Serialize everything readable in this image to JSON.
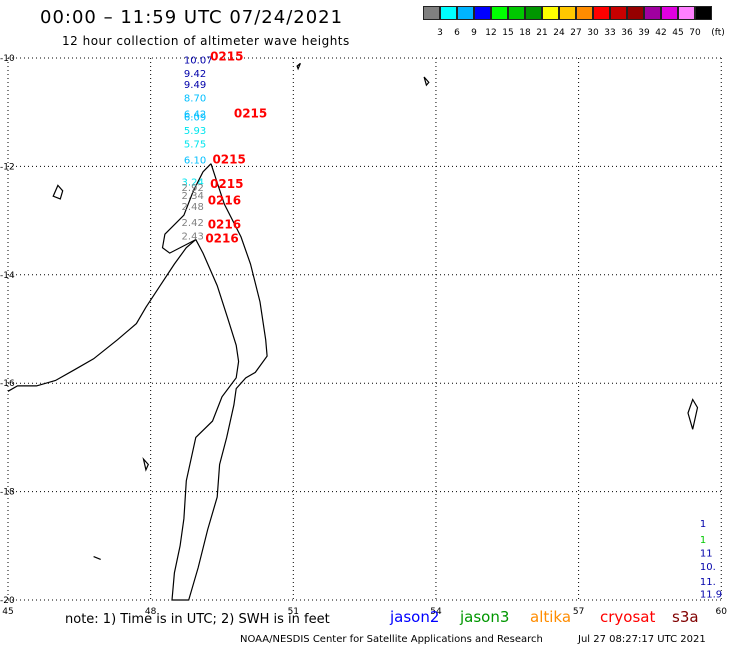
{
  "title": "00:00 – 11:59 UTC 07/24/2021",
  "subtitle": "12 hour collection of altimeter wave heights",
  "legend": {
    "unit": "(ft)",
    "colors": [
      "#808080",
      "#00ffff",
      "#00b4ff",
      "#0000ff",
      "#00ff00",
      "#00c800",
      "#009600",
      "#ffff00",
      "#ffc800",
      "#ff8c00",
      "#ff0000",
      "#c80000",
      "#960000",
      "#a000a0",
      "#e000e0",
      "#ff80ff",
      "#000000"
    ],
    "ticks": [
      "3",
      "6",
      "9",
      "12",
      "15",
      "18",
      "21",
      "24",
      "27",
      "30",
      "33",
      "36",
      "39",
      "42",
      "45",
      "70"
    ]
  },
  "axes": {
    "lon_labels": [
      "45",
      "48",
      "51",
      "54",
      "57",
      "60"
    ],
    "lat_labels": [
      "-10",
      "-12",
      "-14",
      "-16",
      "-18",
      "-20"
    ]
  },
  "map": {
    "coast_color": "#000000",
    "grid_color": "#000000"
  },
  "swh_labels": [
    {
      "lon": 48.7,
      "lat": -10.1,
      "text": "10.07",
      "color": "#0000aa"
    },
    {
      "lon": 48.7,
      "lat": -10.35,
      "text": "9.42",
      "color": "#0000aa"
    },
    {
      "lon": 48.7,
      "lat": -10.55,
      "text": "9.49",
      "color": "#0000aa"
    },
    {
      "lon": 48.7,
      "lat": -10.8,
      "text": "8.70",
      "color": "#00bfff"
    },
    {
      "lon": 48.7,
      "lat": -11.1,
      "text": "6.42",
      "color": "#00bfff"
    },
    {
      "lon": 48.7,
      "lat": -11.15,
      "text": "6.09",
      "color": "#00bfff"
    },
    {
      "lon": 48.7,
      "lat": -11.4,
      "text": "5.93",
      "color": "#00e5ee"
    },
    {
      "lon": 48.7,
      "lat": -11.65,
      "text": "5.75",
      "color": "#00e5ee"
    },
    {
      "lon": 48.7,
      "lat": -11.95,
      "text": "6.10",
      "color": "#00bfff"
    },
    {
      "lon": 48.65,
      "lat": -12.35,
      "text": "3.24",
      "color": "#00e5ee"
    },
    {
      "lon": 48.65,
      "lat": -12.45,
      "text": "2.92",
      "color": "#808080"
    },
    {
      "lon": 48.65,
      "lat": -12.6,
      "text": "2.34",
      "color": "#808080"
    },
    {
      "lon": 48.65,
      "lat": -12.8,
      "text": "2.48",
      "color": "#808080"
    },
    {
      "lon": 48.65,
      "lat": -13.1,
      "text": "2.42",
      "color": "#808080"
    },
    {
      "lon": 48.65,
      "lat": -13.35,
      "text": "2.43",
      "color": "#808080"
    },
    {
      "lon": 59.55,
      "lat": -18.65,
      "text": "1",
      "color": "#0000aa"
    },
    {
      "lon": 59.55,
      "lat": -18.95,
      "text": "1",
      "color": "#00c800"
    },
    {
      "lon": 59.55,
      "lat": -19.2,
      "text": "11",
      "color": "#0000aa"
    },
    {
      "lon": 59.55,
      "lat": -19.45,
      "text": "10.",
      "color": "#0000aa"
    },
    {
      "lon": 59.55,
      "lat": -19.72,
      "text": "11.",
      "color": "#0000aa"
    },
    {
      "lon": 59.55,
      "lat": -19.95,
      "text": "11.9",
      "color": "#0000aa"
    }
  ],
  "time_labels": [
    {
      "lon": 49.25,
      "lat": -10.05,
      "text": "0215"
    },
    {
      "lon": 49.75,
      "lat": -11.1,
      "text": "0215"
    },
    {
      "lon": 49.3,
      "lat": -11.95,
      "text": "0215"
    },
    {
      "lon": 49.25,
      "lat": -12.4,
      "text": "0215"
    },
    {
      "lon": 49.2,
      "lat": -12.7,
      "text": "0216"
    },
    {
      "lon": 49.2,
      "lat": -13.15,
      "text": "0216"
    },
    {
      "lon": 49.15,
      "lat": -13.4,
      "text": "0216"
    }
  ],
  "footer": {
    "note": "note:  1) Time is in UTC; 2) SWH is in feet",
    "satellites": [
      {
        "name": "jason2",
        "color": "#0000ff"
      },
      {
        "name": "jason3",
        "color": "#009600"
      },
      {
        "name": "altika",
        "color": "#ff8c00"
      },
      {
        "name": "cryosat",
        "color": "#ff0000"
      },
      {
        "name": "s3a",
        "color": "#800000"
      }
    ],
    "credit": "NOAA/NESDIS Center for Satellite Applications and Research",
    "datestamp": "Jul 27 08:27:17 UTC 2021"
  }
}
